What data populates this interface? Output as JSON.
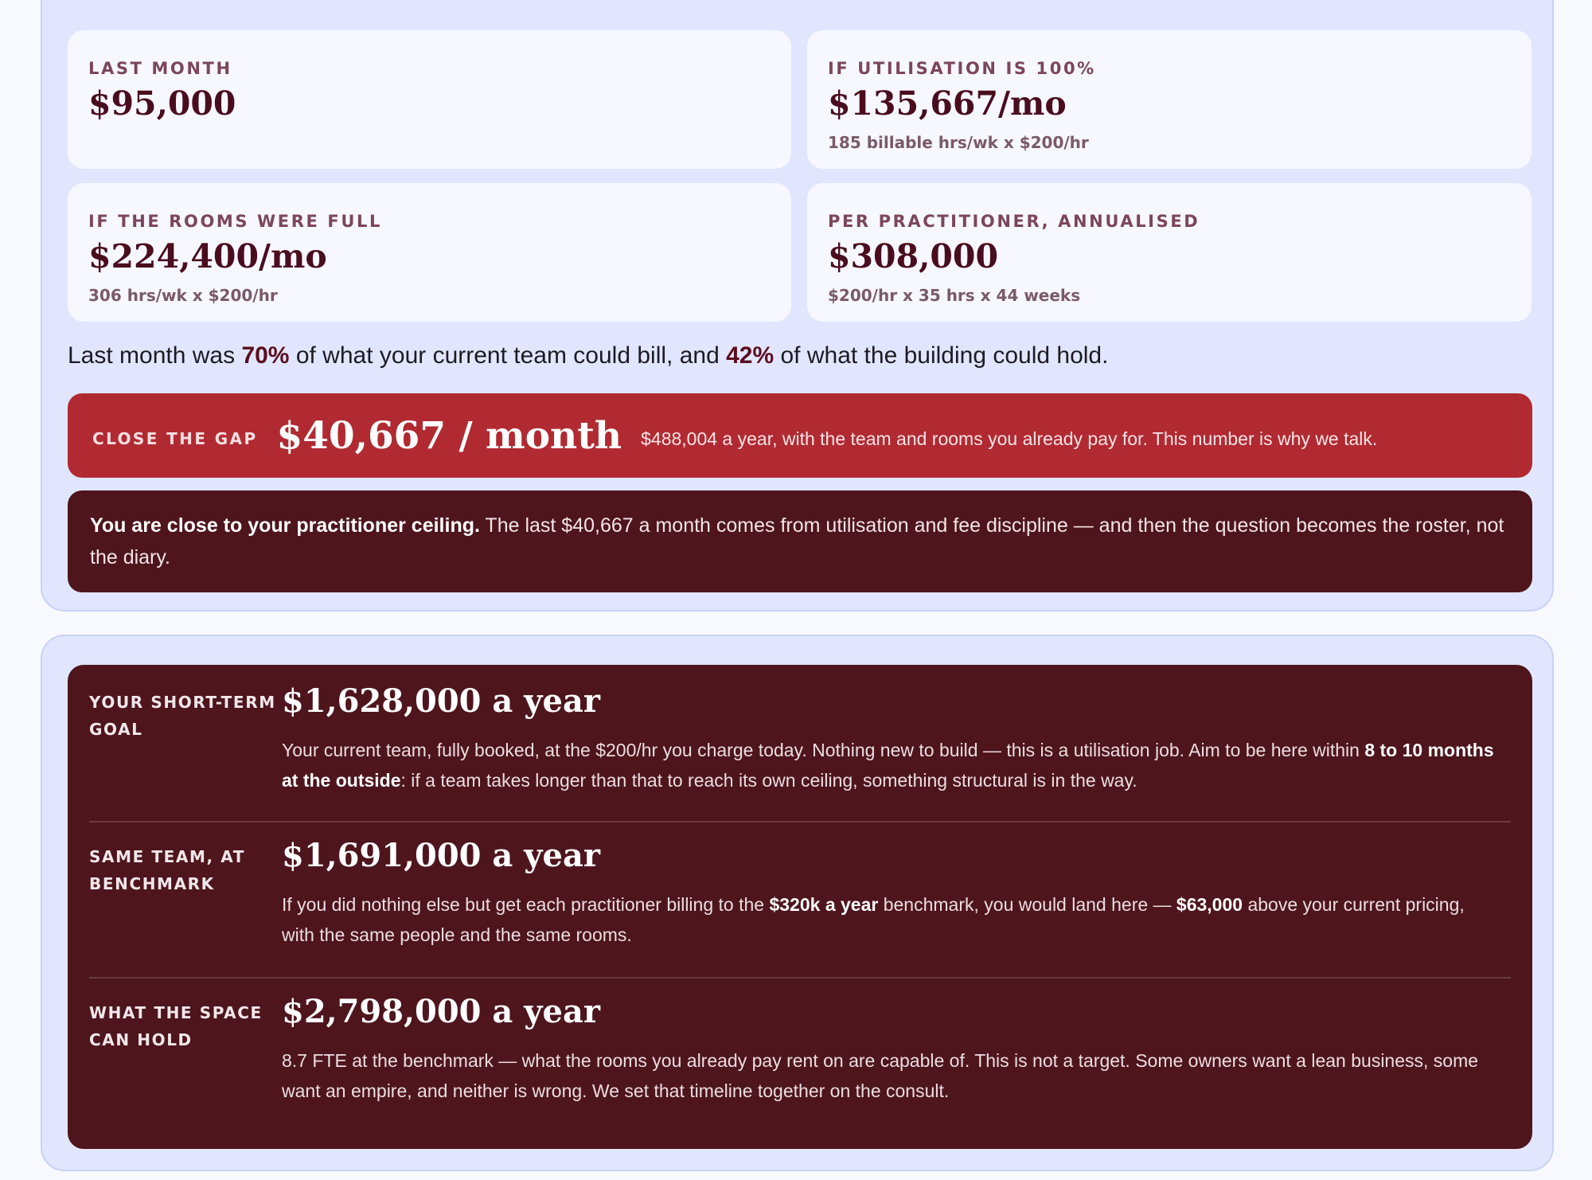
{
  "cards": {
    "last_month": {
      "label": "LAST MONTH",
      "value": "$95,000"
    },
    "utilisation": {
      "label": "IF UTILISATION IS 100%",
      "value": "$135,667/mo",
      "sub": "185 billable hrs/wk x $200/hr"
    },
    "rooms_full": {
      "label": "IF THE ROOMS WERE FULL",
      "value": "$224,400/mo",
      "sub": "306 hrs/wk x $200/hr"
    },
    "per_practitioner": {
      "label": "PER PRACTITIONER, ANNUALISED",
      "value": "$308,000",
      "sub": "$200/hr x 35 hrs x 44 weeks"
    }
  },
  "summary": {
    "part1": "Last month was ",
    "pct_team": "70%",
    "part2": " of what your current team could bill, and ",
    "pct_building": "42%",
    "part3": " of what the building could hold."
  },
  "gap": {
    "label": "CLOSE THE GAP",
    "value": "$40,667 / month",
    "desc": "$488,004 a year, with the team and rooms you already pay for. This number is why we talk."
  },
  "note": {
    "bold": "You are close to your practitioner ceiling.",
    "text": " The last $40,667 a month comes from utilisation and fee discipline — and then the question becomes the roster, not the diary."
  },
  "goals": [
    {
      "label": "YOUR SHORT-TERM GOAL",
      "value": "$1,628,000 a year",
      "desc_1": "Your current team, fully booked, at the $200/hr you charge today. Nothing new to build — this is a utilisation job. Aim to be here within ",
      "desc_bold_1": "8 to 10 months at the outside",
      "desc_2": ": if a team takes longer than that to reach its own ceiling, something structural is in the way."
    },
    {
      "label": "SAME TEAM, AT BENCHMARK",
      "value": "$1,691,000 a year",
      "desc_1": "If you did nothing else but get each practitioner billing to the ",
      "desc_bold_1": "$320k a year",
      "desc_2": " benchmark, you would land here — ",
      "desc_bold_2": "$63,000",
      "desc_3": " above your current pricing, with the same people and the same rooms."
    },
    {
      "label": "WHAT THE SPACE CAN HOLD",
      "value": "$2,798,000 a year",
      "desc_1": "8.7 FTE at the benchmark — what the rooms you already pay rent on are capable of. This is not a target. Some owners want a lean business, some want an empire, and neither is wrong. We set that timeline together on the consult."
    }
  ]
}
